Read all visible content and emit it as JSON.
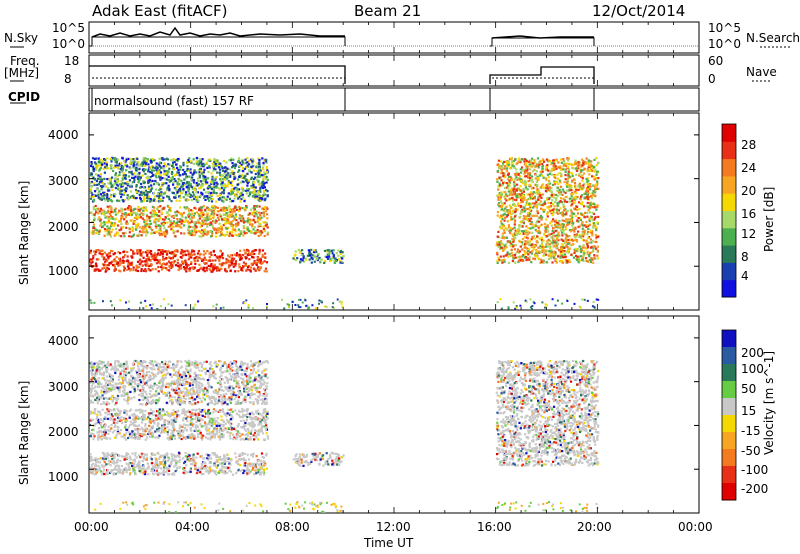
{
  "header": {
    "site": "Adak East (fitACF)",
    "beam": "Beam 21",
    "date": "12/Oct/2014"
  },
  "top_panels": {
    "nsky_label": "N.Sky",
    "nsky_ticks": [
      "10^5",
      "10^0"
    ],
    "nsearch_label": "N.Search",
    "nsearch_ticks": [
      "10^5",
      "10^0"
    ],
    "freq_label": "Freq.",
    "freq_unit": "[MHz]",
    "freq_ticks": [
      "18",
      "8"
    ],
    "nave_label": "Nave",
    "nave_ticks": [
      "60",
      "0"
    ],
    "cpid_label": "CPID",
    "cpid_text": "normalsound (fast) 157 RF"
  },
  "chart_data": [
    {
      "type": "heatmap",
      "name": "Power",
      "ylabel": "Slant Range [km]",
      "yticks": [
        "4000",
        "3000",
        "2000",
        "1000"
      ],
      "ylim": [
        0,
        4500
      ],
      "xlim": [
        "00:00",
        "24:00"
      ],
      "colorbar_label": "Power [dB]",
      "colorbar_ticks": [
        "28",
        "24",
        "20",
        "16",
        "12",
        "8",
        "4"
      ],
      "colors": [
        "#1010e0",
        "#1a3fb0",
        "#2a7a5a",
        "#4caf50",
        "#a6d96a",
        "#f5d800",
        "#f6a623",
        "#f47a20",
        "#e83018",
        "#e00000"
      ],
      "regions": [
        {
          "t0": "00:00",
          "t1": "07:00",
          "r0": 900,
          "r1": 1400,
          "level": "high"
        },
        {
          "t0": "00:00",
          "t1": "07:00",
          "r0": 1700,
          "r1": 2400,
          "level": "mid"
        },
        {
          "t0": "00:00",
          "t1": "07:00",
          "r0": 2500,
          "r1": 3500,
          "level": "low"
        },
        {
          "t0": "08:00",
          "t1": "10:00",
          "r0": 1100,
          "r1": 1400,
          "level": "low"
        },
        {
          "t0": "16:00",
          "t1": "20:00",
          "r0": 1100,
          "r1": 3500,
          "level": "mid"
        }
      ]
    },
    {
      "type": "heatmap",
      "name": "Velocity",
      "ylabel": "Slant Range [km]",
      "yticks": [
        "4000",
        "3000",
        "2000",
        "1000"
      ],
      "ylim": [
        0,
        4500
      ],
      "xlim": [
        "00:00",
        "24:00"
      ],
      "xlabel": "Time UT",
      "xticks": [
        "00:00",
        "04:00",
        "08:00",
        "12:00",
        "16:00",
        "20:00",
        "00:00"
      ],
      "colorbar_label": "Velocity [m s^-1]",
      "colorbar_ticks": [
        "200",
        "100",
        "50",
        "15",
        "-15",
        "-50",
        "-100",
        "-200"
      ],
      "colors": [
        "#1010c0",
        "#2a5aa0",
        "#2a7a5a",
        "#66cc44",
        "#c8c8c8",
        "#f5d800",
        "#f6a623",
        "#f47a20",
        "#e83018",
        "#e00000"
      ]
    }
  ]
}
